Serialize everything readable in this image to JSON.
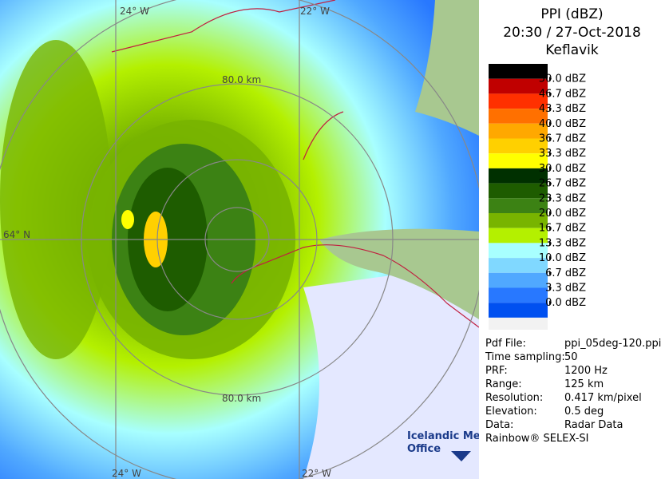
{
  "header": {
    "title": "PPI (dBZ)",
    "time": "20:30 / 27-Oct-2018",
    "site": "Keflavik"
  },
  "legend": {
    "entries": [
      {
        "label": "50.0 dBZ",
        "color": "#000000"
      },
      {
        "label": "46.7 dBZ",
        "color": "#c00000"
      },
      {
        "label": "43.3 dBZ",
        "color": "#ff3000"
      },
      {
        "label": "40.0 dBZ",
        "color": "#ff7000"
      },
      {
        "label": "36.7 dBZ",
        "color": "#ffa800"
      },
      {
        "label": "33.3 dBZ",
        "color": "#ffd000"
      },
      {
        "label": "30.0 dBZ",
        "color": "#ffff00"
      },
      {
        "label": "26.7 dBZ",
        "color": "#003000"
      },
      {
        "label": "23.3 dBZ",
        "color": "#1e5c00"
      },
      {
        "label": "20.0 dBZ",
        "color": "#3c8214"
      },
      {
        "label": "16.7 dBZ",
        "color": "#78b400"
      },
      {
        "label": "13.3 dBZ",
        "color": "#b4f000"
      },
      {
        "label": "10.0 dBZ",
        "color": "#a8ffff"
      },
      {
        "label": "6.7 dBZ",
        "color": "#80d8ff"
      },
      {
        "label": "3.3 dBZ",
        "color": "#50a8ff"
      },
      {
        "label": "0.0 dBZ",
        "color": "#2878ff"
      }
    ],
    "top_color": "#000000",
    "last_color": "#0050f0"
  },
  "info": [
    {
      "label": "Pdf File:",
      "value": "ppi_05deg-120.ppi"
    },
    {
      "label": "Time sampling:",
      "value": "50"
    },
    {
      "label": "PRF:",
      "value": "1200 Hz"
    },
    {
      "label": "Range:",
      "value": "125 km"
    },
    {
      "label": "Resolution:",
      "value": "0.417 km/pixel"
    },
    {
      "label": "Elevation:",
      "value": "0.5 deg"
    },
    {
      "label": "Data:",
      "value": "Radar Data"
    }
  ],
  "credit": "Rainbow® SELEX-SI",
  "map": {
    "lon_top_left": "24° W",
    "lon_top_right": "22° W",
    "lon_bottom_left": "24° W",
    "lon_bottom_right": "22° W",
    "lat_left": "64° N",
    "range_top": "80.0 km",
    "range_bottom": "80.0 km",
    "logo_line1": "Icelandic Met",
    "logo_line2": "Office"
  }
}
